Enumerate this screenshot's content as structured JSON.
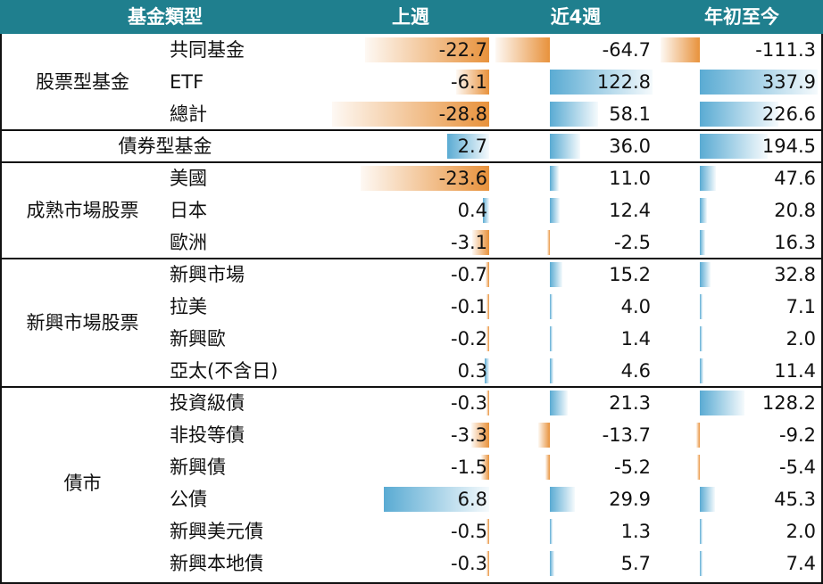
{
  "header": {
    "type": "基金類型",
    "week": "上週",
    "w4": "近4週",
    "ytd": "年初至今"
  },
  "groups": [
    {
      "name": "股票型基金",
      "rows": [
        {
          "label": "共同基金",
          "week": -22.7,
          "w4": -64.7,
          "ytd": -111.3
        },
        {
          "label": "ETF",
          "week": -6.1,
          "w4": 122.8,
          "ytd": 337.9
        },
        {
          "label": "總計",
          "week": -28.8,
          "w4": 58.1,
          "ytd": 226.6
        }
      ]
    },
    {
      "name": "債券型基金",
      "rows": [
        {
          "label": "",
          "week": 2.7,
          "w4": 36.0,
          "ytd": 194.5
        }
      ]
    },
    {
      "name": "成熟市場股票",
      "rows": [
        {
          "label": "美國",
          "week": -23.6,
          "w4": 11.0,
          "ytd": 47.6
        },
        {
          "label": "日本",
          "week": 0.4,
          "w4": 12.4,
          "ytd": 20.8
        },
        {
          "label": "歐洲",
          "week": -3.1,
          "w4": -2.5,
          "ytd": 16.3
        }
      ]
    },
    {
      "name": "新興市場股票",
      "rows": [
        {
          "label": "新興市場",
          "week": -0.7,
          "w4": 15.2,
          "ytd": 32.8
        },
        {
          "label": "拉美",
          "week": -0.1,
          "w4": 4.0,
          "ytd": 7.1
        },
        {
          "label": "新興歐",
          "week": -0.2,
          "w4": 1.4,
          "ytd": 2.0
        },
        {
          "label": "亞太(不含日)",
          "week": 0.3,
          "w4": 4.6,
          "ytd": 11.4
        }
      ]
    },
    {
      "name": "債市",
      "rows": [
        {
          "label": "投資級債",
          "week": -0.3,
          "w4": 21.3,
          "ytd": 128.2
        },
        {
          "label": "非投等債",
          "week": -3.3,
          "w4": -13.7,
          "ytd": -9.2
        },
        {
          "label": "新興債",
          "week": -1.5,
          "w4": -5.2,
          "ytd": -5.4
        },
        {
          "label": "公債",
          "week": 6.8,
          "w4": 29.9,
          "ytd": 45.3
        },
        {
          "label": "新興美元債",
          "week": -0.5,
          "w4": 1.3,
          "ytd": 2.0
        },
        {
          "label": "新興本地債",
          "week": -0.3,
          "w4": 5.7,
          "ytd": 7.4
        }
      ]
    }
  ],
  "colors": {
    "header_bg": "#1f7f8e",
    "negative_bar": "#e8923c",
    "positive_bar": "#5aabd3"
  },
  "chart_data": {
    "type": "table",
    "title": "",
    "columns": [
      "基金類型",
      "上週",
      "近4週",
      "年初至今"
    ],
    "note": "Data bars within each column; orange for outflows, blue for inflows"
  }
}
